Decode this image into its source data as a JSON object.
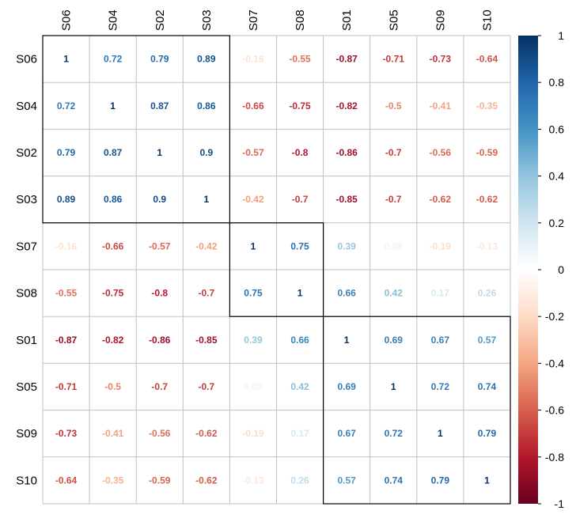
{
  "chart_data": {
    "type": "heatmap",
    "title": "",
    "labels": [
      "S06",
      "S04",
      "S02",
      "S03",
      "S07",
      "S08",
      "S01",
      "S05",
      "S09",
      "S10"
    ],
    "matrix": [
      [
        1,
        0.72,
        0.79,
        0.89,
        -0.16,
        -0.55,
        -0.87,
        -0.71,
        -0.73,
        -0.64
      ],
      [
        0.72,
        1,
        0.87,
        0.86,
        -0.66,
        -0.75,
        -0.82,
        -0.5,
        -0.41,
        -0.35
      ],
      [
        0.79,
        0.87,
        1,
        0.9,
        -0.57,
        -0.8,
        -0.86,
        -0.7,
        -0.56,
        -0.59
      ],
      [
        0.89,
        0.86,
        0.9,
        1,
        -0.42,
        -0.7,
        -0.85,
        -0.7,
        -0.62,
        -0.62
      ],
      [
        -0.16,
        -0.66,
        -0.57,
        -0.42,
        1,
        0.75,
        0.39,
        0.08,
        -0.19,
        -0.13
      ],
      [
        -0.55,
        -0.75,
        -0.8,
        -0.7,
        0.75,
        1,
        0.66,
        0.42,
        0.17,
        0.26
      ],
      [
        -0.87,
        -0.82,
        -0.86,
        -0.85,
        0.39,
        0.66,
        1,
        0.69,
        0.67,
        0.57
      ],
      [
        -0.71,
        -0.5,
        -0.7,
        -0.7,
        0.08,
        0.42,
        0.69,
        1,
        0.72,
        0.74
      ],
      [
        -0.73,
        -0.41,
        -0.56,
        -0.62,
        -0.19,
        0.17,
        0.67,
        0.72,
        1,
        0.79
      ],
      [
        -0.64,
        -0.35,
        -0.59,
        -0.62,
        -0.13,
        0.26,
        0.57,
        0.74,
        0.79,
        1
      ]
    ],
    "clusters": [
      {
        "members": [
          "S06",
          "S04",
          "S02",
          "S03"
        ]
      },
      {
        "members": [
          "S07",
          "S08"
        ]
      },
      {
        "members": [
          "S01",
          "S05",
          "S09",
          "S10"
        ]
      }
    ],
    "colorbar": {
      "range": [
        -1,
        1
      ],
      "ticks": [
        "1",
        "0.8",
        "0.6",
        "0.4",
        "0.2",
        "0",
        "-0.2",
        "-0.4",
        "-0.6",
        "-0.8",
        "-1"
      ],
      "palette": [
        "#67001F",
        "#B2182B",
        "#D6604D",
        "#F4A582",
        "#FDDBC7",
        "#FFFFFF",
        "#D1E5F0",
        "#92C5DE",
        "#4393C3",
        "#2166AC",
        "#053061"
      ]
    },
    "grid": true
  }
}
